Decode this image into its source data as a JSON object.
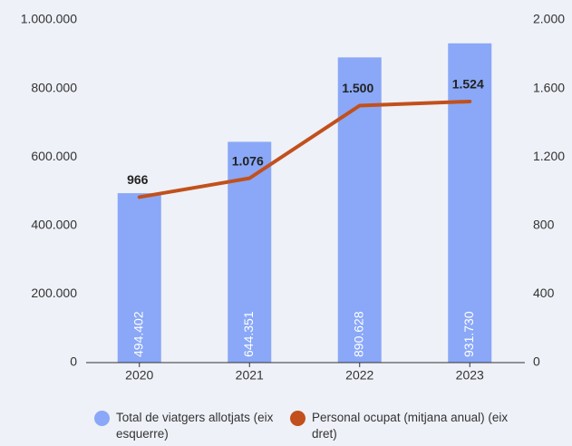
{
  "chart_data": {
    "type": "bar-line",
    "categories": [
      "2020",
      "2021",
      "2022",
      "2023"
    ],
    "series": [
      {
        "name": "Total de viatgers allotjats (eix esquerre)",
        "color": "#8aa8f7",
        "type": "bar",
        "axis": "y",
        "values": [
          494402,
          644351,
          890628,
          931730
        ],
        "value_labels": [
          "494.402",
          "644.351",
          "890.628",
          "931.730"
        ]
      },
      {
        "name": "Personal ocupat (mitjana anual) (eix dret)",
        "color": "#c2501c",
        "type": "line",
        "axis": "y2",
        "values": [
          966,
          1076,
          1500,
          1524
        ],
        "value_labels": [
          "966",
          "1.076",
          "1.500",
          "1.524"
        ]
      }
    ],
    "ylim": [
      0,
      1000000
    ],
    "yticks": [
      0,
      {
        "value": 200000,
        "label": "200.000"
      },
      {
        "value": 400000,
        "label": "400.000"
      },
      {
        "value": 600000,
        "label": "600.000"
      },
      {
        "value": 800000,
        "label": "800.000"
      },
      {
        "value": 1000000,
        "label": "1.000.000"
      }
    ],
    "y2lim": [
      0,
      2000
    ],
    "y2ticks": [
      0,
      400,
      800,
      {
        "value": 1200,
        "label": "1.200"
      },
      {
        "value": 1600,
        "label": "1.600"
      },
      {
        "value": 2000,
        "label": "2.000"
      }
    ],
    "grid": false
  }
}
